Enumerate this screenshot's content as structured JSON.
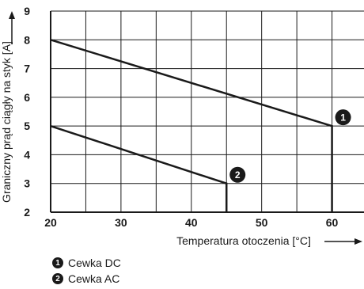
{
  "chart_data": {
    "type": "line",
    "xlabel": "Temperatura otoczenia [°C]",
    "ylabel": "Graniczny prąd ciągły na styk [A]",
    "xlim": [
      20,
      65
    ],
    "ylim": [
      2,
      9
    ],
    "x_ticks": [
      20,
      30,
      40,
      50,
      60
    ],
    "y_ticks": [
      2,
      3,
      4,
      5,
      6,
      7,
      8,
      9
    ],
    "grid": true,
    "series": [
      {
        "name": "Cewka DC",
        "badge": "1",
        "x": [
          20,
          60,
          60
        ],
        "y": [
          8,
          5,
          2
        ]
      },
      {
        "name": "Cewka AC",
        "badge": "2",
        "x": [
          20,
          45,
          45
        ],
        "y": [
          5,
          3,
          2
        ]
      }
    ]
  },
  "legend": [
    {
      "badge": "1",
      "label": "Cewka DC"
    },
    {
      "badge": "2",
      "label": "Cewka AC"
    }
  ],
  "colors": {
    "line": "#1a1a1a",
    "grid": "#1a1a1a"
  }
}
